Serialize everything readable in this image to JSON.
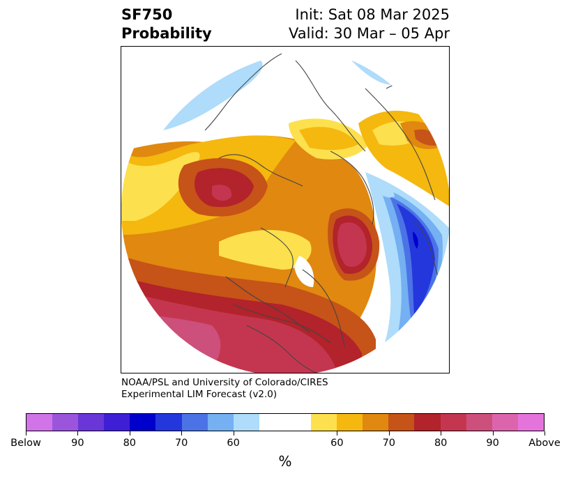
{
  "header": {
    "title_line1": "SF750",
    "title_line2": "Probability",
    "init": "Init: Sat 08 Mar 2025",
    "valid": "Valid: 30 Mar – 05 Apr"
  },
  "credit": {
    "line1": "NOAA/PSL and University of Colorado/CIRES",
    "line2": "Experimental LIM Forecast (v2.0)"
  },
  "colorbar": {
    "unit": "%",
    "colors": [
      "#d174e8",
      "#9b55dd",
      "#6a36d8",
      "#3e1fd6",
      "#0000cc",
      "#2437dc",
      "#4c73e6",
      "#74b0f2",
      "#aedcfa",
      "#ffffff",
      "#ffffff",
      "#fde04d",
      "#f4b80f",
      "#e08810",
      "#c65318",
      "#b2232b",
      "#c43650",
      "#cd4f7c",
      "#dc64ad",
      "#e474dc"
    ],
    "tick_labels": [
      "Below",
      "90",
      "80",
      "70",
      "60",
      "60",
      "70",
      "80",
      "90",
      "Above"
    ]
  },
  "map": {
    "projection": "north-polar-stereographic",
    "palette": {
      "light_blue": "#aedcfa",
      "mid_blue": "#74b0f2",
      "blue": "#4c73e6",
      "dark_blue": "#2437dc",
      "navy": "#0000cc",
      "yellow": "#fde04d",
      "gold": "#f4b80f",
      "orange": "#e08810",
      "dark_orange": "#c65318",
      "red": "#b2232b",
      "crimson": "#c43650",
      "rose": "#cd4f7c",
      "coast": "#444444"
    }
  }
}
